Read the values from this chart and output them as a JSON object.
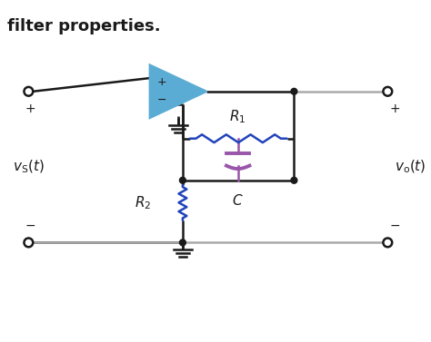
{
  "title": "filter properties.",
  "title_fontsize": 13,
  "title_fontweight": "bold",
  "bg_color": "#ffffff",
  "opamp_color": "#5bacd4",
  "R1_color": "#2244bb",
  "R2_color": "#2244bb",
  "C_color": "#9955aa",
  "wire_black": "#1a1a1a",
  "wire_gray": "#aaaaaa",
  "dot_color": "#1a1a1a"
}
